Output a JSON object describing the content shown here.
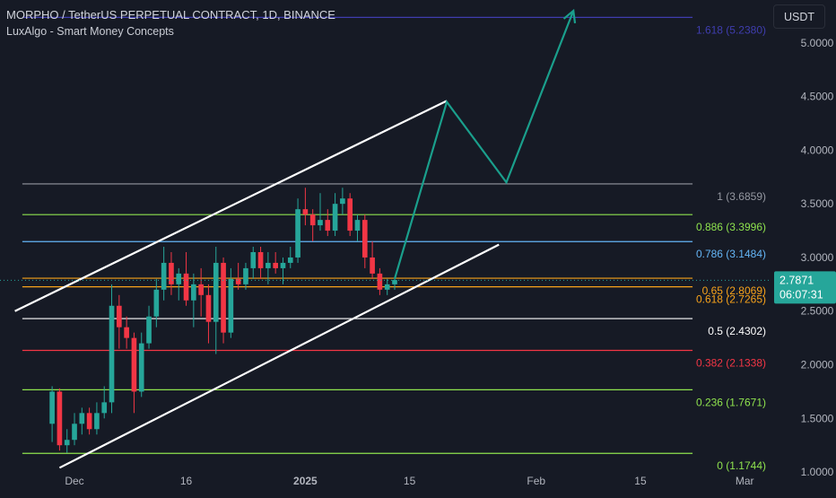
{
  "header": {
    "title": "MORPHO / TetherUS PERPETUAL CONTRACT, 1D, BINANCE",
    "indicator": "LuxAlgo - Smart Money Concepts"
  },
  "currency_label": "USDT",
  "last_price": {
    "value": "2.7871",
    "countdown": "06:07:31",
    "color": "#26a69a"
  },
  "colors": {
    "background": "#161a25",
    "up": "#26a69a",
    "down": "#f23645",
    "channel": "#ffffff",
    "projection": "#1a9f8c",
    "axis_text": "#b2b5be"
  },
  "chart_data": {
    "type": "candlestick",
    "title": "MORPHO / TetherUS PERPETUAL CONTRACT, 1D, BINANCE",
    "xlabel": "",
    "ylabel": "",
    "ylim": [
      0.8,
      5.4
    ],
    "x_range": [
      "2024-11-21",
      "2025-03-07"
    ],
    "grid": false,
    "x_ticks": [
      {
        "label": "Dec",
        "date": "2024-12-01",
        "bold": false
      },
      {
        "label": "16",
        "date": "2024-12-16",
        "bold": false
      },
      {
        "label": "2025",
        "date": "2025-01-01",
        "bold": true
      },
      {
        "label": "15",
        "date": "2025-01-15",
        "bold": false
      },
      {
        "label": "Feb",
        "date": "2025-02-01",
        "bold": false
      },
      {
        "label": "15",
        "date": "2025-02-15",
        "bold": false
      },
      {
        "label": "Mar",
        "date": "2025-03-01",
        "bold": false
      }
    ],
    "y_ticks": [
      1.0,
      1.5,
      2.0,
      2.5,
      3.0,
      3.5,
      4.0,
      4.5,
      5.0
    ],
    "candles": [
      {
        "date": "2024-11-28",
        "open": 1.45,
        "high": 1.8,
        "low": 1.28,
        "close": 1.75
      },
      {
        "date": "2024-11-29",
        "open": 1.75,
        "high": 1.78,
        "low": 1.2,
        "close": 1.25
      },
      {
        "date": "2024-11-30",
        "open": 1.25,
        "high": 1.4,
        "low": 1.18,
        "close": 1.3
      },
      {
        "date": "2024-12-01",
        "open": 1.3,
        "high": 1.55,
        "low": 1.25,
        "close": 1.45
      },
      {
        "date": "2024-12-02",
        "open": 1.45,
        "high": 1.6,
        "low": 1.35,
        "close": 1.55
      },
      {
        "date": "2024-12-03",
        "open": 1.55,
        "high": 1.6,
        "low": 1.35,
        "close": 1.4
      },
      {
        "date": "2024-12-04",
        "open": 1.4,
        "high": 1.65,
        "low": 1.35,
        "close": 1.55
      },
      {
        "date": "2024-12-05",
        "open": 1.55,
        "high": 1.8,
        "low": 1.5,
        "close": 1.65
      },
      {
        "date": "2024-12-06",
        "open": 1.65,
        "high": 2.75,
        "low": 1.55,
        "close": 2.55
      },
      {
        "date": "2024-12-07",
        "open": 2.55,
        "high": 2.65,
        "low": 2.15,
        "close": 2.35
      },
      {
        "date": "2024-12-08",
        "open": 2.35,
        "high": 2.45,
        "low": 2.15,
        "close": 2.25
      },
      {
        "date": "2024-12-09",
        "open": 2.25,
        "high": 2.3,
        "low": 1.55,
        "close": 1.75
      },
      {
        "date": "2024-12-10",
        "open": 1.75,
        "high": 2.3,
        "low": 1.7,
        "close": 2.2
      },
      {
        "date": "2024-12-11",
        "open": 2.2,
        "high": 2.55,
        "low": 2.15,
        "close": 2.45
      },
      {
        "date": "2024-12-12",
        "open": 2.45,
        "high": 2.8,
        "low": 2.35,
        "close": 2.7
      },
      {
        "date": "2024-12-13",
        "open": 2.7,
        "high": 3.1,
        "low": 2.6,
        "close": 2.95
      },
      {
        "date": "2024-12-14",
        "open": 2.95,
        "high": 3.05,
        "low": 2.65,
        "close": 2.75
      },
      {
        "date": "2024-12-15",
        "open": 2.75,
        "high": 2.9,
        "low": 2.6,
        "close": 2.85
      },
      {
        "date": "2024-12-16",
        "open": 2.85,
        "high": 3.05,
        "low": 2.55,
        "close": 2.6
      },
      {
        "date": "2024-12-17",
        "open": 2.6,
        "high": 2.85,
        "low": 2.35,
        "close": 2.75
      },
      {
        "date": "2024-12-18",
        "open": 2.75,
        "high": 2.9,
        "low": 2.45,
        "close": 2.65
      },
      {
        "date": "2024-12-19",
        "open": 2.65,
        "high": 2.75,
        "low": 2.2,
        "close": 2.4
      },
      {
        "date": "2024-12-20",
        "open": 2.4,
        "high": 3.1,
        "low": 2.1,
        "close": 2.95
      },
      {
        "date": "2024-12-21",
        "open": 2.95,
        "high": 3.0,
        "low": 2.2,
        "close": 2.3
      },
      {
        "date": "2024-12-22",
        "open": 2.3,
        "high": 2.9,
        "low": 2.25,
        "close": 2.8
      },
      {
        "date": "2024-12-23",
        "open": 2.8,
        "high": 2.95,
        "low": 2.7,
        "close": 2.75
      },
      {
        "date": "2024-12-24",
        "open": 2.75,
        "high": 2.95,
        "low": 2.7,
        "close": 2.9
      },
      {
        "date": "2024-12-25",
        "open": 2.9,
        "high": 3.1,
        "low": 2.8,
        "close": 3.05
      },
      {
        "date": "2024-12-26",
        "open": 3.05,
        "high": 3.1,
        "low": 2.8,
        "close": 2.9
      },
      {
        "date": "2024-12-27",
        "open": 2.9,
        "high": 3.05,
        "low": 2.75,
        "close": 2.95
      },
      {
        "date": "2024-12-28",
        "open": 2.95,
        "high": 3.05,
        "low": 2.85,
        "close": 2.9
      },
      {
        "date": "2024-12-29",
        "open": 2.9,
        "high": 3.0,
        "low": 2.75,
        "close": 2.95
      },
      {
        "date": "2024-12-30",
        "open": 2.95,
        "high": 3.1,
        "low": 2.9,
        "close": 3.0
      },
      {
        "date": "2024-12-31",
        "open": 3.0,
        "high": 3.55,
        "low": 2.95,
        "close": 3.45
      },
      {
        "date": "2025-01-01",
        "open": 3.45,
        "high": 3.65,
        "low": 3.3,
        "close": 3.4
      },
      {
        "date": "2025-01-02",
        "open": 3.4,
        "high": 3.45,
        "low": 3.15,
        "close": 3.3
      },
      {
        "date": "2025-01-03",
        "open": 3.3,
        "high": 3.6,
        "low": 3.25,
        "close": 3.35
      },
      {
        "date": "2025-01-04",
        "open": 3.35,
        "high": 3.45,
        "low": 3.2,
        "close": 3.25
      },
      {
        "date": "2025-01-05",
        "open": 3.25,
        "high": 3.6,
        "low": 3.2,
        "close": 3.5
      },
      {
        "date": "2025-01-06",
        "open": 3.5,
        "high": 3.65,
        "low": 3.4,
        "close": 3.55
      },
      {
        "date": "2025-01-07",
        "open": 3.55,
        "high": 3.6,
        "low": 3.2,
        "close": 3.25
      },
      {
        "date": "2025-01-08",
        "open": 3.25,
        "high": 3.4,
        "low": 3.15,
        "close": 3.35
      },
      {
        "date": "2025-01-09",
        "open": 3.35,
        "high": 3.4,
        "low": 2.9,
        "close": 3.0
      },
      {
        "date": "2025-01-10",
        "open": 3.0,
        "high": 3.15,
        "low": 2.8,
        "close": 2.85
      },
      {
        "date": "2025-01-11",
        "open": 2.85,
        "high": 2.9,
        "low": 2.65,
        "close": 2.7
      },
      {
        "date": "2025-01-12",
        "open": 2.7,
        "high": 2.8,
        "low": 2.65,
        "close": 2.75
      },
      {
        "date": "2025-01-13",
        "open": 2.75,
        "high": 2.82,
        "low": 2.7,
        "close": 2.79
      }
    ],
    "fib_levels": [
      {
        "ratio": "1.618",
        "value": 5.238,
        "label": "1.618 (5.2380)",
        "color": "#3f3dae"
      },
      {
        "ratio": "1",
        "value": 3.6859,
        "label": "1 (3.6859)",
        "color": "#9598a1"
      },
      {
        "ratio": "0.886",
        "value": 3.3996,
        "label": "0.886 (3.3996)",
        "color": "#8fe34e"
      },
      {
        "ratio": "0.786",
        "value": 3.1484,
        "label": "0.786 (3.1484)",
        "color": "#64b5f6"
      },
      {
        "ratio": "0.65",
        "value": 2.8069,
        "label": "0.65 (2.8069)",
        "color": "#f7a21b"
      },
      {
        "ratio": "0.618",
        "value": 2.7265,
        "label": "0.618 (2.7265)",
        "color": "#f7a21b"
      },
      {
        "ratio": "0.5",
        "value": 2.4302,
        "label": "0.5 (2.4302)",
        "color": "#ffffff"
      },
      {
        "ratio": "0.382",
        "value": 2.1338,
        "label": "0.382 (2.1338)",
        "color": "#f23645"
      },
      {
        "ratio": "0.236",
        "value": 1.7671,
        "label": "0.236 (1.7671)",
        "color": "#8fe34e"
      },
      {
        "ratio": "0",
        "value": 1.1744,
        "label": "0 (1.1744)",
        "color": "#8fe34e"
      }
    ],
    "fib_start_date": "2024-11-24",
    "fib_end_date": "2025-02-22",
    "channel": {
      "upper": [
        {
          "date": "2024-11-23",
          "price": 2.5
        },
        {
          "date": "2025-01-20",
          "price": 4.46
        }
      ],
      "lower": [
        {
          "date": "2024-11-29",
          "price": 1.04
        },
        {
          "date": "2025-01-27",
          "price": 3.12
        }
      ]
    },
    "projection": [
      {
        "date": "2025-01-13",
        "price": 2.8
      },
      {
        "date": "2025-01-20",
        "price": 4.45
      },
      {
        "date": "2025-01-28",
        "price": 3.7
      },
      {
        "date": "2025-02-06",
        "price": 5.3
      }
    ]
  }
}
